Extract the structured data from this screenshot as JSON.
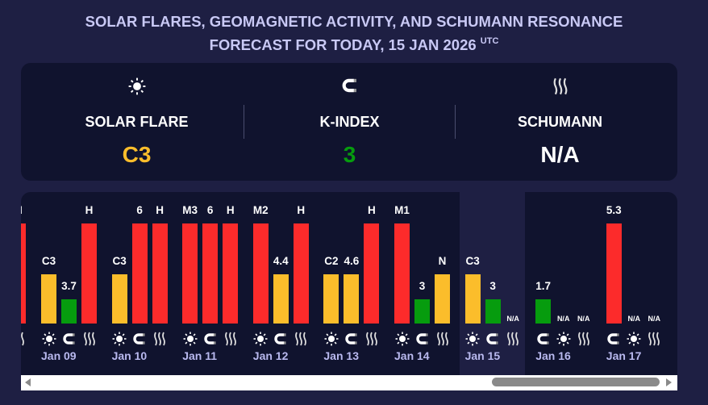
{
  "title": {
    "line1": "SOLAR FLARES, GEOMAGNETIC ACTIVITY, AND SCHUMANN RESONANCE",
    "line2": "FORECAST FOR TODAY, 15 JAN 2026",
    "tz": "UTC"
  },
  "summary": [
    {
      "icon": "sun-icon",
      "label": "SOLAR FLARE",
      "value": "C3",
      "color": "#fbbd2b"
    },
    {
      "icon": "magnet-icon",
      "label": "K-INDEX",
      "value": "3",
      "color": "#069c0e"
    },
    {
      "icon": "waves-icon",
      "label": "SCHUMANN",
      "value": "N/A",
      "color": "#ffffff"
    }
  ],
  "colors": {
    "high": "#fc2b2b",
    "mid": "#fbbd2b",
    "low": "#069c0e"
  },
  "days": [
    {
      "date": "",
      "bars": [
        {
          "type": "schumann",
          "value": "H",
          "level": "high"
        }
      ],
      "partial": true
    },
    {
      "date": "Jan 09",
      "bars": [
        {
          "type": "sun",
          "value": "C3",
          "level": "mid"
        },
        {
          "type": "k",
          "value": "3.7",
          "level": "low"
        },
        {
          "type": "schumann",
          "value": "H",
          "level": "high"
        }
      ]
    },
    {
      "date": "Jan 10",
      "bars": [
        {
          "type": "sun",
          "value": "C3",
          "level": "mid"
        },
        {
          "type": "k",
          "value": "6",
          "level": "high"
        },
        {
          "type": "schumann",
          "value": "H",
          "level": "high"
        }
      ]
    },
    {
      "date": "Jan 11",
      "bars": [
        {
          "type": "sun",
          "value": "M3",
          "level": "high"
        },
        {
          "type": "k",
          "value": "6",
          "level": "high"
        },
        {
          "type": "schumann",
          "value": "H",
          "level": "high"
        }
      ]
    },
    {
      "date": "Jan 12",
      "bars": [
        {
          "type": "sun",
          "value": "M2",
          "level": "high"
        },
        {
          "type": "k",
          "value": "4.4",
          "level": "mid"
        },
        {
          "type": "schumann",
          "value": "H",
          "level": "high"
        }
      ]
    },
    {
      "date": "Jan 13",
      "bars": [
        {
          "type": "sun",
          "value": "C2",
          "level": "mid"
        },
        {
          "type": "k",
          "value": "4.6",
          "level": "mid"
        },
        {
          "type": "schumann",
          "value": "H",
          "level": "high"
        }
      ]
    },
    {
      "date": "Jan 14",
      "bars": [
        {
          "type": "sun",
          "value": "M1",
          "level": "high"
        },
        {
          "type": "k",
          "value": "3",
          "level": "low"
        },
        {
          "type": "schumann",
          "value": "N",
          "level": "mid"
        }
      ]
    },
    {
      "date": "Jan 15",
      "bars": [
        {
          "type": "sun",
          "value": "C3",
          "level": "mid"
        },
        {
          "type": "k",
          "value": "3",
          "level": "low"
        },
        {
          "type": "schumann",
          "value": "N/A",
          "level": "none"
        }
      ],
      "today": true
    },
    {
      "date": "Jan 16",
      "bars": [
        {
          "type": "k",
          "value": "1.7",
          "level": "low"
        },
        {
          "type": "sun",
          "value": "N/A",
          "level": "none"
        },
        {
          "type": "schumann",
          "value": "N/A",
          "level": "none"
        }
      ]
    },
    {
      "date": "Jan 17",
      "bars": [
        {
          "type": "k",
          "value": "5.3",
          "level": "high"
        },
        {
          "type": "sun",
          "value": "N/A",
          "level": "none"
        },
        {
          "type": "schumann",
          "value": "N/A",
          "level": "none"
        }
      ]
    }
  ]
}
